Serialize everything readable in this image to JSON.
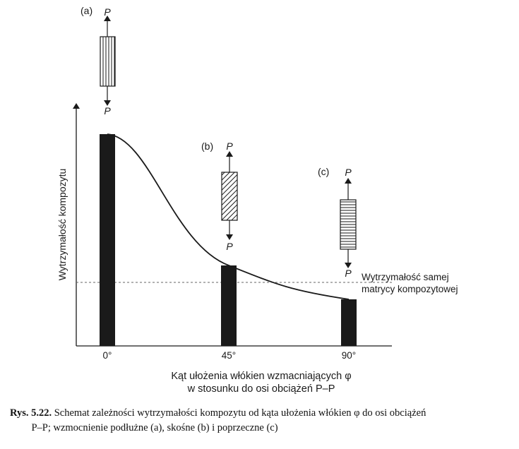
{
  "chart_data": {
    "type": "bar",
    "categories": [
      "0°",
      "45°",
      "90°"
    ],
    "values": [
      100,
      38,
      22
    ],
    "trend_curve": true,
    "matrix_strength": 30,
    "ylim": [
      0,
      100
    ],
    "ylabel": "Wytrzymałość kompozytu",
    "xlabel_line1": "Kąt ułożenia włókien wzmacniających φ",
    "xlabel_line2": "w stosunku do osi obciążeń P–P",
    "matrix_label_line1": "Wytrzymałość samej",
    "matrix_label_line2": "matrycy kompozytowej",
    "grid": false,
    "insets": [
      {
        "tag": "(a)",
        "load_top": "P",
        "load_bottom": "P",
        "pattern": "vertical"
      },
      {
        "tag": "(b)",
        "load_top": "P",
        "load_bottom": "P",
        "pattern": "diagonal"
      },
      {
        "tag": "(c)",
        "load_top": "P",
        "load_bottom": "P",
        "pattern": "horizontal"
      }
    ],
    "bar_color": "#1a1a1a"
  },
  "caption": {
    "label": "Rys. 5.22.",
    "line1": "Schemat zależności wytrzymałości kompozytu od kąta ułożenia włókien φ do osi obciążeń",
    "line2": "P–P; wzmocnienie podłużne (a), skośne (b) i poprzeczne (c)"
  }
}
